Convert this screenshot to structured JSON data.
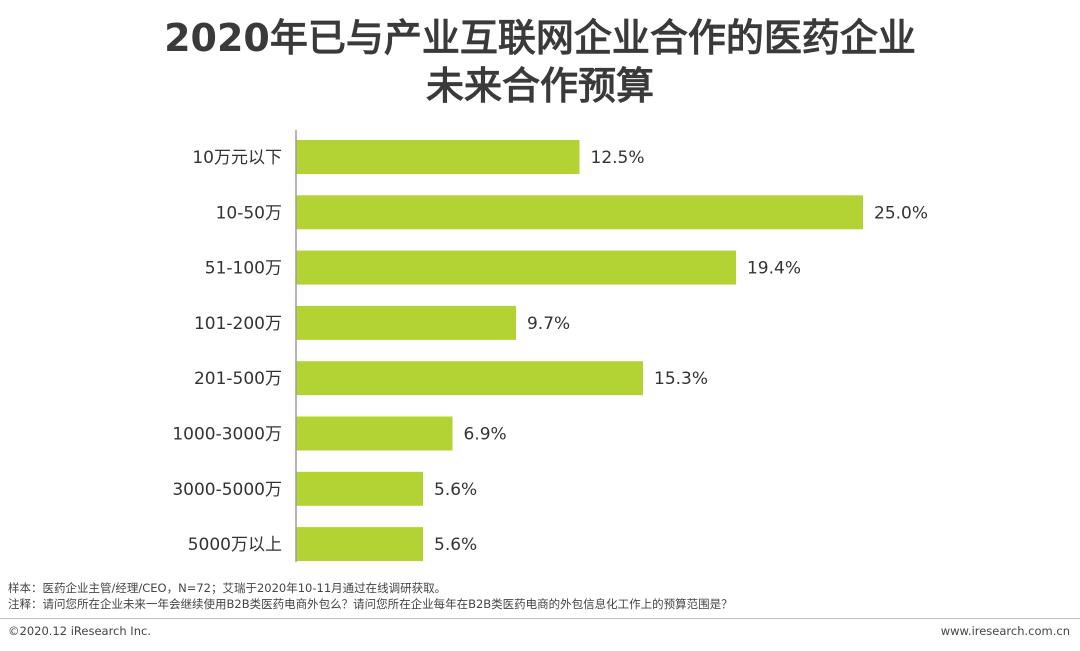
{
  "chart_data": {
    "type": "bar",
    "orientation": "horizontal",
    "title_lines": [
      "2020年已与产业互联网企业合作的医药企业",
      "未来合作预算"
    ],
    "categories": [
      "10万元以下",
      "10-50万",
      "51-100万",
      "101-200万",
      "201-500万",
      "1000-3000万",
      "3000-5000万",
      "5000万以上"
    ],
    "values": [
      12.5,
      25.0,
      19.4,
      9.7,
      15.3,
      6.9,
      5.6,
      5.6
    ],
    "value_labels": [
      "12.5%",
      "25.0%",
      "19.4%",
      "9.7%",
      "15.3%",
      "6.9%",
      "5.6%",
      "5.6%"
    ],
    "unit": "%",
    "xlim": [
      0,
      25.0
    ],
    "bar_color": "#b3d334",
    "axis_color": "#9e9e9e",
    "xlabel": "",
    "ylabel": "",
    "legend": "none",
    "grid": false
  },
  "notes": {
    "sample": "样本：医药企业主管/经理/CEO，N=72；艾瑞于2020年10-11月通过在线调研获取。",
    "annotation": "注释：请问您所在企业未来一年会继续使用B2B类医药电商外包么？请问您所在企业每年在B2B类医药电商的外包信息化工作上的预算范围是？"
  },
  "footer": {
    "copyright": "©2020.12 iResearch Inc.",
    "website": "www.iresearch.com.cn"
  }
}
